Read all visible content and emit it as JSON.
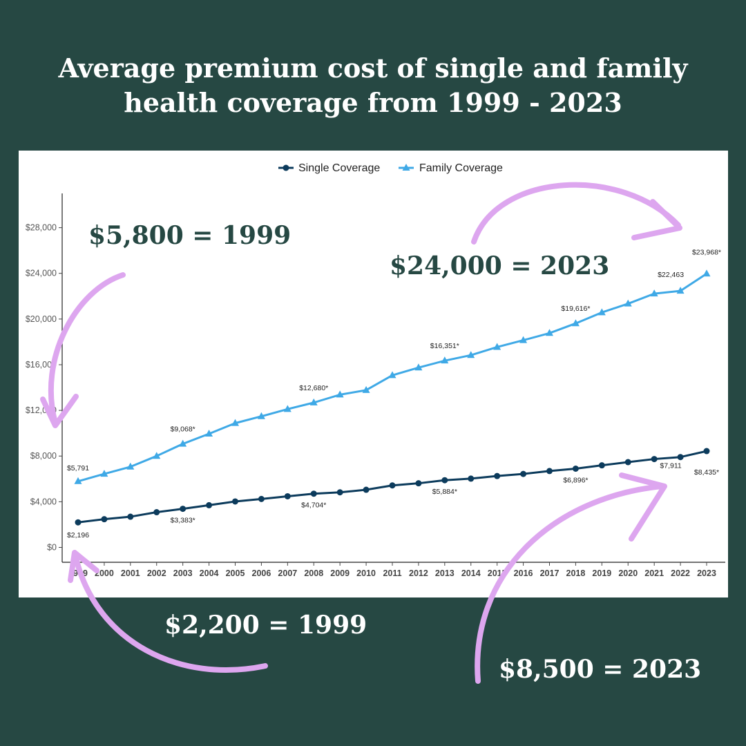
{
  "headline": {
    "line1": "Average premium cost of single and family",
    "line2": "health coverage from 1999 - 2023"
  },
  "colors": {
    "background": "#264843",
    "single": "#0c3b5c",
    "family": "#3fa9e6",
    "arrow": "#dda6ef"
  },
  "callouts": {
    "family_1999": "$5,800 = 1999",
    "family_2023": "$24,000 = 2023",
    "single_1999": "$2,200 = 1999",
    "single_2023": "$8,500 = 2023"
  },
  "chart_data": {
    "type": "line",
    "x": [
      1999,
      2000,
      2001,
      2002,
      2003,
      2004,
      2005,
      2006,
      2007,
      2008,
      2009,
      2010,
      2011,
      2012,
      2013,
      2014,
      2015,
      2016,
      2017,
      2018,
      2019,
      2020,
      2021,
      2022,
      2023
    ],
    "x_tick_labels": [
      "1999",
      "2000",
      "2001",
      "2002",
      "2003",
      "2004",
      "2005",
      "2006",
      "2007",
      "2008",
      "2009",
      "2010",
      "2011",
      "2012",
      "2013",
      "2014",
      "2015",
      "2016",
      "2017",
      "2018",
      "2019",
      "2020",
      "2021",
      "2022",
      "2023"
    ],
    "series": [
      {
        "name": "Single Coverage",
        "marker": "circle",
        "values": [
          2196,
          2471,
          2689,
          3083,
          3383,
          3695,
          4024,
          4242,
          4479,
          4704,
          4824,
          5049,
          5429,
          5615,
          5884,
          6025,
          6251,
          6435,
          6690,
          6896,
          7188,
          7470,
          7739,
          7911,
          8435
        ]
      },
      {
        "name": "Family Coverage",
        "marker": "triangle",
        "values": [
          5791,
          6438,
          7061,
          8003,
          9068,
          9950,
          10880,
          11480,
          12106,
          12680,
          13375,
          13770,
          15073,
          15745,
          16351,
          16834,
          17545,
          18142,
          18764,
          19616,
          20576,
          21342,
          22221,
          22463,
          23968
        ]
      }
    ],
    "annotations": [
      {
        "series": 1,
        "x": 1999,
        "text": "$5,791"
      },
      {
        "series": 1,
        "x": 2003,
        "text": "$9,068*"
      },
      {
        "series": 1,
        "x": 2008,
        "text": "$12,680*"
      },
      {
        "series": 1,
        "x": 2013,
        "text": "$16,351*"
      },
      {
        "series": 1,
        "x": 2018,
        "text": "$19,616*"
      },
      {
        "series": 1,
        "x": 2022,
        "text": "$22,463"
      },
      {
        "series": 1,
        "x": 2023,
        "text": "$23,968*"
      },
      {
        "series": 0,
        "x": 1999,
        "text": "$2,196"
      },
      {
        "series": 0,
        "x": 2003,
        "text": "$3,383*"
      },
      {
        "series": 0,
        "x": 2008,
        "text": "$4,704*"
      },
      {
        "series": 0,
        "x": 2013,
        "text": "$5,884*"
      },
      {
        "series": 0,
        "x": 2018,
        "text": "$6,896*"
      },
      {
        "series": 0,
        "x": 2022,
        "text": "$7,911"
      },
      {
        "series": 0,
        "x": 2023,
        "text": "$8,435*"
      }
    ],
    "y_ticks": [
      {
        "value": 0,
        "label": "$0"
      },
      {
        "value": 4000,
        "label": "$4,000"
      },
      {
        "value": 8000,
        "label": "$8,000"
      },
      {
        "value": 12000,
        "label": "$12,000"
      },
      {
        "value": 16000,
        "label": "$16,000"
      },
      {
        "value": 20000,
        "label": "$20,000"
      },
      {
        "value": 24000,
        "label": "$24,000"
      },
      {
        "value": 28000,
        "label": "$28,000"
      }
    ],
    "ylim": [
      -1300,
      31000
    ],
    "grid": false,
    "legend_position": "top-center"
  }
}
